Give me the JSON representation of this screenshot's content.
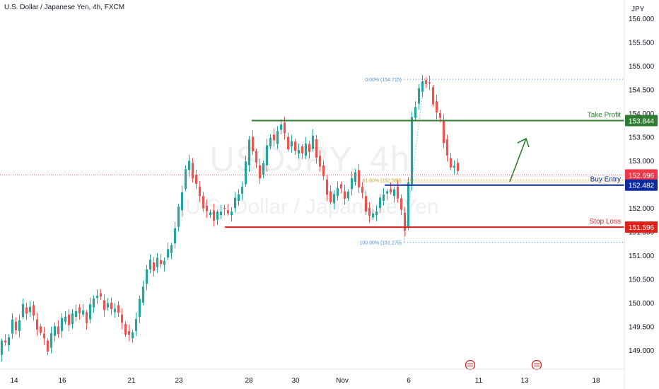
{
  "header": {
    "title": "U.S. Dollar / Japanese Yen, 4h, FXCM"
  },
  "watermark": {
    "symbol": "USDJPY, 4h",
    "name": "U.S. Dollar / Japanese Yen"
  },
  "axis": {
    "currency": "JPY"
  },
  "colors": {
    "up": "#26a69a",
    "down": "#ef5350",
    "take_profit": "#2e7d32",
    "buy_entry": "#0d2a9e",
    "stop_loss": "#e0201b",
    "fib": "#4a8fd4",
    "fib_mid": "#c9a227",
    "current": "#f23645"
  },
  "chart_data": {
    "type": "candlestick",
    "title": "U.S. Dollar / Japanese Yen, 4h, FXCM",
    "ylim": [
      148.45,
      156.25
    ],
    "y_ticks": [
      "149.000",
      "149.500",
      "150.000",
      "150.500",
      "151.000",
      "151.500",
      "152.000",
      "152.500",
      "153.000",
      "153.500",
      "154.000",
      "154.500",
      "155.000",
      "155.500",
      "156.000"
    ],
    "x_ticks": [
      "14",
      "16",
      "21",
      "23",
      "28",
      "30",
      "Nov",
      "6",
      "11",
      "13",
      "18"
    ],
    "levels": {
      "take_profit": {
        "label": "Take Profit",
        "value": "153.844"
      },
      "buy_entry": {
        "label": "Buy Entry",
        "value": "152.482"
      },
      "stop_loss": {
        "label": "Stop Loss",
        "value": "151.596"
      },
      "current": {
        "value": "152.696"
      }
    },
    "fibonacci": [
      {
        "label": "0.00% (154.715)",
        "price": 154.715
      },
      {
        "label": "61.80% (152.589)",
        "price": 152.589
      },
      {
        "label": "100.00% (151.275)",
        "price": 151.275
      }
    ],
    "path": [
      [
        0,
        148.9
      ],
      [
        5,
        149.2
      ],
      [
        10,
        149.1
      ],
      [
        15,
        149.35
      ],
      [
        20,
        149.6
      ],
      [
        25,
        149.4
      ],
      [
        30,
        149.7
      ],
      [
        35,
        149.9
      ],
      [
        40,
        149.8
      ],
      [
        45,
        149.95
      ],
      [
        50,
        149.65
      ],
      [
        55,
        149.5
      ],
      [
        60,
        149.35
      ],
      [
        65,
        149.2
      ],
      [
        70,
        149.05
      ],
      [
        75,
        149.3
      ],
      [
        80,
        149.5
      ],
      [
        85,
        149.4
      ],
      [
        90,
        149.6
      ],
      [
        95,
        149.75
      ],
      [
        100,
        149.55
      ],
      [
        105,
        149.7
      ],
      [
        110,
        149.9
      ],
      [
        115,
        149.75
      ],
      [
        120,
        149.8
      ],
      [
        125,
        149.65
      ],
      [
        130,
        149.9
      ],
      [
        135,
        150.1
      ],
      [
        140,
        150.2
      ],
      [
        145,
        150.05
      ],
      [
        150,
        149.9
      ],
      [
        155,
        150.0
      ],
      [
        160,
        149.8
      ],
      [
        165,
        149.95
      ],
      [
        170,
        149.75
      ],
      [
        175,
        149.55
      ],
      [
        180,
        149.4
      ],
      [
        185,
        149.25
      ],
      [
        190,
        149.4
      ],
      [
        195,
        149.7
      ],
      [
        200,
        150.0
      ],
      [
        205,
        150.4
      ],
      [
        210,
        150.7
      ],
      [
        215,
        150.85
      ],
      [
        220,
        150.75
      ],
      [
        225,
        150.9
      ],
      [
        230,
        150.8
      ],
      [
        235,
        150.95
      ],
      [
        240,
        151.05
      ],
      [
        245,
        151.25
      ],
      [
        250,
        151.6
      ],
      [
        255,
        151.95
      ],
      [
        260,
        152.4
      ],
      [
        265,
        152.8
      ],
      [
        270,
        152.95
      ],
      [
        275,
        152.7
      ],
      [
        280,
        152.45
      ],
      [
        285,
        152.25
      ],
      [
        290,
        152.05
      ],
      [
        295,
        151.85
      ],
      [
        300,
        151.95
      ],
      [
        305,
        151.75
      ],
      [
        310,
        151.85
      ],
      [
        315,
        152.0
      ],
      [
        320,
        151.95
      ],
      [
        325,
        151.85
      ],
      [
        330,
        152.0
      ],
      [
        335,
        152.15
      ],
      [
        340,
        152.3
      ],
      [
        345,
        152.5
      ],
      [
        350,
        152.9
      ],
      [
        355,
        153.5
      ],
      [
        360,
        153.2
      ],
      [
        365,
        152.9
      ],
      [
        370,
        152.7
      ],
      [
        375,
        152.9
      ],
      [
        380,
        153.3
      ],
      [
        385,
        153.55
      ],
      [
        390,
        153.35
      ],
      [
        395,
        153.65
      ],
      [
        400,
        153.8
      ],
      [
        405,
        153.5
      ],
      [
        410,
        153.3
      ],
      [
        415,
        153.4
      ],
      [
        420,
        153.15
      ],
      [
        425,
        153.3
      ],
      [
        430,
        153.1
      ],
      [
        435,
        153.35
      ],
      [
        440,
        153.25
      ],
      [
        445,
        153.45
      ],
      [
        450,
        153.1
      ],
      [
        455,
        152.9
      ],
      [
        460,
        152.6
      ],
      [
        465,
        152.35
      ],
      [
        470,
        152.1
      ],
      [
        475,
        152.25
      ],
      [
        480,
        152.5
      ],
      [
        485,
        152.35
      ],
      [
        490,
        152.2
      ],
      [
        495,
        152.4
      ],
      [
        500,
        152.55
      ],
      [
        505,
        152.8
      ],
      [
        510,
        152.45
      ],
      [
        515,
        152.25
      ],
      [
        520,
        152.0
      ],
      [
        525,
        151.8
      ],
      [
        530,
        151.85
      ],
      [
        535,
        152.0
      ],
      [
        540,
        152.15
      ],
      [
        545,
        152.3
      ],
      [
        550,
        152.4
      ],
      [
        555,
        152.25
      ],
      [
        560,
        152.45
      ],
      [
        565,
        152.2
      ],
      [
        570,
        151.9
      ],
      [
        575,
        151.6
      ],
      [
        580,
        152.5
      ],
      [
        585,
        153.9
      ],
      [
        590,
        154.2
      ],
      [
        595,
        154.45
      ],
      [
        600,
        154.7
      ],
      [
        605,
        154.65
      ],
      [
        610,
        154.55
      ],
      [
        615,
        154.25
      ],
      [
        620,
        154.0
      ],
      [
        625,
        153.85
      ],
      [
        630,
        153.45
      ],
      [
        635,
        153.05
      ],
      [
        640,
        152.85
      ],
      [
        645,
        152.95
      ],
      [
        650,
        152.7
      ]
    ]
  }
}
